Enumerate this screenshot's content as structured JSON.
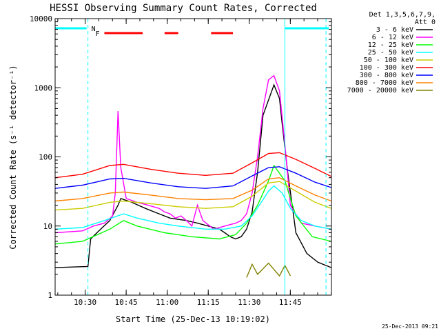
{
  "chart_data": {
    "type": "line",
    "title": "HESSI Observing Summary Count Rates, Corrected",
    "xlabel": "Start Time (25-Dec-13 10:19:02)",
    "ylabel": "Corrected Count Rate (s⁻¹ detector⁻¹)",
    "y_scale": "log",
    "ylim": [
      1,
      10000
    ],
    "xlim_minutes_after_start": [
      0,
      101
    ],
    "x_tick_labels": [
      "10:30",
      "10:45",
      "11:00",
      "11:15",
      "11:30",
      "11:45"
    ],
    "y_tick_labels": [
      "1",
      "10",
      "100",
      "1000",
      "10000"
    ],
    "legend": {
      "placement": "outside-right",
      "header_lines": [
        "Det 1,3,5,6,7,9,",
        "Att 0"
      ]
    },
    "series": [
      {
        "name": "3 - 6 keV",
        "color": "#000000",
        "x": [
          0,
          12,
          13,
          16,
          20,
          23,
          24,
          28,
          33,
          38,
          42,
          48,
          52,
          56,
          60,
          62,
          64,
          66,
          68,
          70,
          72,
          74,
          76,
          80,
          82,
          83,
          85,
          88,
          92,
          96,
          101
        ],
        "y": [
          2.5,
          2.6,
          6.5,
          8.5,
          12,
          20,
          25,
          22,
          18,
          15,
          13,
          12,
          11,
          10,
          9,
          8,
          7,
          6.5,
          7,
          9,
          16,
          60,
          400,
          1100,
          700,
          300,
          60,
          8,
          4,
          3,
          2.5
        ]
      },
      {
        "name": "6 - 12 keV",
        "color": "#ff00ff",
        "x": [
          0,
          10,
          14,
          18,
          21,
          22,
          23,
          24,
          26,
          30,
          34,
          38,
          40,
          42,
          44,
          46,
          48,
          50,
          52,
          54,
          58,
          62,
          66,
          68,
          70,
          72,
          74,
          76,
          78,
          80,
          82,
          84,
          86,
          90,
          95,
          101
        ],
        "y": [
          8,
          8.5,
          10,
          11,
          14,
          30,
          460,
          70,
          25,
          22,
          20,
          18,
          16,
          15,
          13,
          14,
          12,
          10,
          20,
          12,
          9,
          10,
          11,
          12,
          15,
          30,
          100,
          500,
          1300,
          1500,
          900,
          150,
          20,
          11,
          10,
          9
        ]
      },
      {
        "name": "12 - 25 keV",
        "color": "#00ff00",
        "x": [
          0,
          10,
          20,
          25,
          30,
          40,
          50,
          60,
          66,
          70,
          74,
          78,
          80,
          84,
          88,
          94,
          101
        ],
        "y": [
          5.5,
          6,
          9,
          12,
          10,
          8,
          7,
          6.5,
          7.5,
          11,
          20,
          45,
          75,
          45,
          14,
          7,
          6
        ]
      },
      {
        "name": "25 - 50 keV",
        "color": "#00ffff",
        "x": [
          0,
          10,
          18,
          25,
          30,
          38,
          45,
          55,
          62,
          68,
          72,
          76,
          78,
          80,
          83,
          86,
          90,
          95,
          101
        ],
        "y": [
          9,
          9.5,
          12,
          15,
          13,
          11,
          10,
          9,
          9,
          10,
          14,
          24,
          32,
          38,
          30,
          18,
          12,
          10,
          9
        ]
      },
      {
        "name": "50 - 100 keV",
        "color": "#cccc00",
        "x": [
          0,
          10,
          20,
          25,
          35,
          45,
          55,
          65,
          72,
          78,
          82,
          88,
          95,
          101
        ],
        "y": [
          17,
          18,
          22,
          23,
          21,
          19,
          18,
          19,
          27,
          42,
          44,
          32,
          22,
          18
        ]
      },
      {
        "name": "100 - 300 keV",
        "color": "#ff0000",
        "x": [
          0,
          10,
          20,
          25,
          35,
          45,
          55,
          65,
          72,
          78,
          82,
          88,
          95,
          101
        ],
        "y": [
          50,
          56,
          75,
          78,
          66,
          58,
          54,
          58,
          82,
          112,
          115,
          92,
          68,
          52
        ]
      },
      {
        "name": "300 - 800 keV",
        "color": "#0000ff",
        "x": [
          0,
          10,
          20,
          25,
          35,
          45,
          55,
          65,
          72,
          78,
          82,
          88,
          95,
          101
        ],
        "y": [
          35,
          39,
          48,
          49,
          42,
          37,
          35,
          38,
          53,
          70,
          72,
          58,
          43,
          36
        ]
      },
      {
        "name": "800 - 7000 keV",
        "color": "#ff8000",
        "x": [
          0,
          10,
          20,
          25,
          35,
          45,
          55,
          65,
          72,
          78,
          82,
          88,
          95,
          101
        ],
        "y": [
          23,
          25,
          30,
          31,
          28,
          25,
          24,
          25,
          33,
          48,
          50,
          38,
          28,
          23
        ]
      },
      {
        "name": "7000 - 20000 keV",
        "color": "#808000",
        "x": [
          70,
          72,
          74,
          78,
          82,
          84,
          86
        ],
        "y": [
          1.8,
          2.8,
          2.0,
          2.9,
          1.9,
          2.7,
          1.9
        ]
      }
    ],
    "flags": [
      {
        "label": "N",
        "color": "#00ffff",
        "segments": [
          [
            0,
            11.5
          ],
          [
            84,
            100
          ]
        ]
      },
      {
        "label": "F",
        "color": "#ff0000",
        "segments": [
          [
            18,
            32
          ],
          [
            40,
            45
          ],
          [
            57,
            65
          ]
        ]
      }
    ],
    "vertical_markers": [
      {
        "x": 12,
        "style": "dashed",
        "color": "#00ffff"
      },
      {
        "x": 84,
        "style": "solid",
        "color": "#00ffff"
      },
      {
        "x": 99,
        "style": "dashed",
        "color": "#00ffff"
      }
    ]
  },
  "footer_timestamp": "25-Dec-2013 09:21"
}
